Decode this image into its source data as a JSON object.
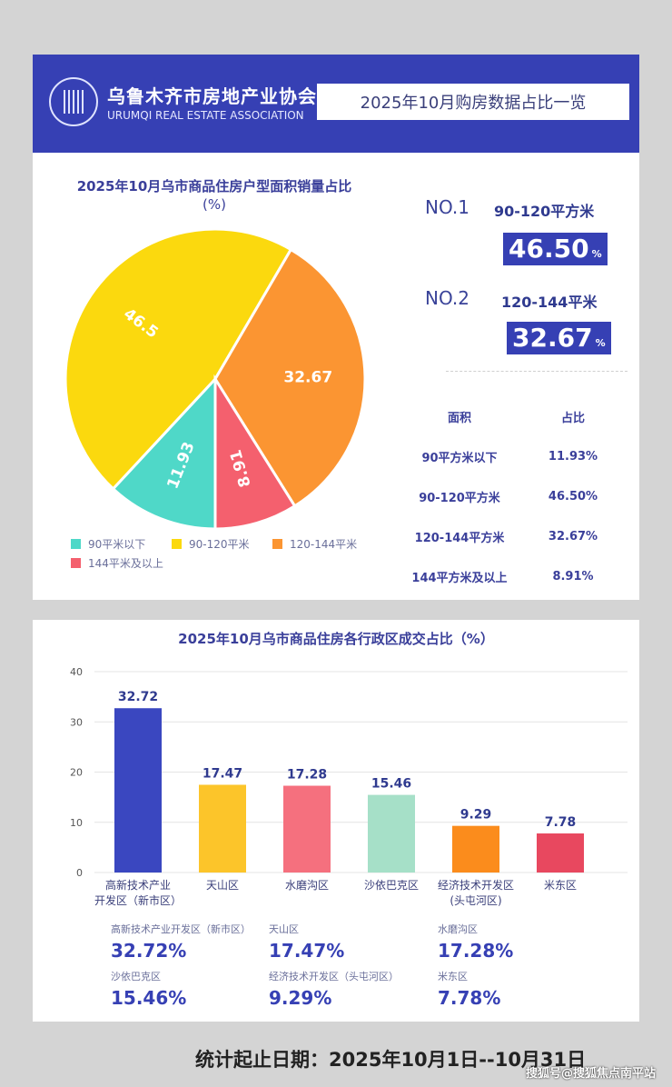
{
  "header": {
    "org_cn": "乌鲁木齐市房地产业协会",
    "org_en": "URUMQI REAL ESTATE ASSOCIATION",
    "title": "2025年10月购房数据占比一览"
  },
  "highlights": [
    {
      "rank": "NO.1",
      "range": "90-120平方米",
      "value": "46.50",
      "unit": "%"
    },
    {
      "rank": "NO.2",
      "range": "120-144平米",
      "value": "32.67",
      "unit": "%"
    }
  ],
  "table": {
    "headers": [
      "面积",
      "占比"
    ],
    "rows": [
      [
        "90平方米以下",
        "11.93%"
      ],
      [
        "90-120平方米",
        "46.50%"
      ],
      [
        "120-144平方米",
        "32.67%"
      ],
      [
        "144平方米及以上",
        "8.91%"
      ]
    ]
  },
  "chart_data": [
    {
      "type": "pie",
      "title": "2025年10月乌市商品住房户型面积销量占比",
      "subtitle": "(%)",
      "slices": [
        {
          "label": "90平米以下",
          "value": 11.93,
          "color": "#4fd8c8"
        },
        {
          "label": "90-120平米",
          "value": 46.5,
          "color": "#fbd90e"
        },
        {
          "label": "120-144平米",
          "value": 32.67,
          "color": "#fb9532"
        },
        {
          "label": "144平米及以上",
          "value": 8.91,
          "color": "#f4606e"
        }
      ],
      "data_labels": [
        "11.93",
        "46.5",
        "32.67",
        "8.91"
      ],
      "legend": "bottom"
    },
    {
      "type": "bar",
      "title": "2025年10月乌市商品住房各行政区成交占比（%）",
      "categories": [
        [
          "高新技术产业",
          "开发区（新市区）"
        ],
        [
          "天山区"
        ],
        [
          "水磨沟区"
        ],
        [
          "沙依巴克区"
        ],
        [
          "经济技术开发区",
          "(头屯河区)"
        ],
        [
          "米东区"
        ]
      ],
      "values": [
        32.72,
        17.47,
        17.28,
        15.46,
        9.29,
        7.78
      ],
      "data_labels": [
        "32.72",
        "17.47",
        "17.28",
        "15.46",
        "9.29",
        "7.78"
      ],
      "colors": [
        "#3a47c0",
        "#fcc52a",
        "#f5707e",
        "#a6e0c8",
        "#fb8c1c",
        "#e8485f"
      ],
      "ylim": [
        0,
        40
      ],
      "yticks": [
        "0",
        "10",
        "20",
        "30",
        "40"
      ],
      "grid": true
    }
  ],
  "summary": [
    {
      "label": "高新技术产业开发区（新市区）",
      "value": "32.72%"
    },
    {
      "label": "天山区",
      "value": "17.47%"
    },
    {
      "label": "水磨沟区",
      "value": "17.28%"
    },
    {
      "label": "沙依巴克区",
      "value": "15.46%"
    },
    {
      "label": "经济技术开发区（头屯河区）",
      "value": "9.29%"
    },
    {
      "label": "米东区",
      "value": "7.78%"
    }
  ],
  "footer": "统计起止日期：2025年10月1日--10月31日",
  "watermark": "搜狐号@搜狐焦点南平站"
}
